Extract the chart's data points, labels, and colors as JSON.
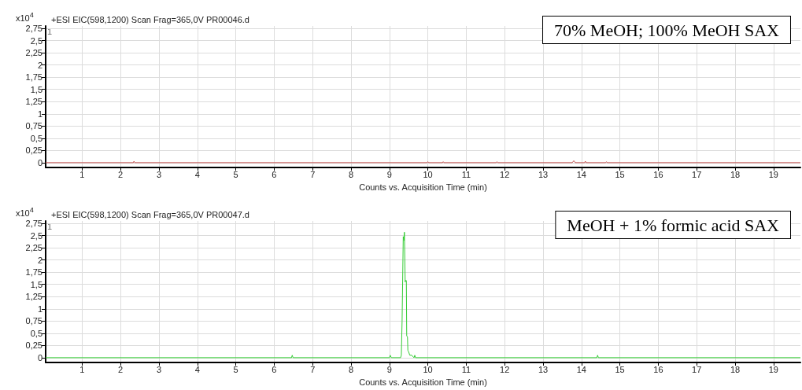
{
  "chart_data": [
    {
      "type": "line",
      "title": "+ESI EIC(598,1200) Scan Frag=365,0V PR00046.d",
      "xlabel": "Counts vs. Acquisition Time (min)",
      "ylabel": "x10$^{4}$",
      "annotations": [
        "1",
        "70% MeOH; 100% MeOH SAX"
      ],
      "series": [
        {
          "color": "#c0504d",
          "x": [
            0.05,
            2.33,
            2.35,
            2.37,
            9.98,
            10.0,
            10.02,
            10.38,
            10.4,
            10.42,
            11.78,
            11.8,
            11.82,
            13.76,
            13.8,
            13.84,
            14.08,
            14.1,
            14.12,
            14.63,
            14.65,
            14.67,
            19.7
          ],
          "values": [
            0,
            0,
            0.03,
            0,
            0,
            0.02,
            0,
            0,
            0.02,
            0,
            0,
            0.02,
            0,
            0,
            0.04,
            0,
            0,
            0.03,
            0,
            0,
            0.02,
            0,
            0
          ]
        }
      ],
      "xlim": [
        0.05,
        19.7
      ],
      "xticks": [
        1,
        2,
        3,
        4,
        5,
        6,
        7,
        8,
        9,
        10,
        11,
        12,
        13,
        14,
        15,
        16,
        17,
        18,
        19
      ],
      "ylim": [
        -0.1,
        2.8
      ],
      "yticks": [
        0,
        {
          "value": 0.25,
          "label": "0,25"
        },
        {
          "value": 0.5,
          "label": "0,5"
        },
        {
          "value": 0.75,
          "label": "0,75"
        },
        1,
        {
          "value": 1.25,
          "label": "1,25"
        },
        {
          "value": 1.5,
          "label": "1,5"
        },
        {
          "value": 1.75,
          "label": "1,75"
        },
        2,
        {
          "value": 2.25,
          "label": "2,25"
        },
        {
          "value": 2.5,
          "label": "2,5"
        },
        {
          "value": 2.75,
          "label": "2,75"
        }
      ],
      "grid": true
    },
    {
      "type": "line",
      "title": "+ESI EIC(598,1200) Scan Frag=365,0V PR00047.d",
      "xlabel": "Counts vs. Acquisition Time (min)",
      "ylabel": "x10$^{4}$",
      "annotations": [
        "1",
        "MeOH + 1% formic acid SAX"
      ],
      "series": [
        {
          "color": "#33cc33",
          "x": [
            0.05,
            6.45,
            6.47,
            6.49,
            9.0,
            9.02,
            9.05,
            9.29,
            9.31,
            9.33,
            9.34,
            9.36,
            9.38,
            9.39,
            9.41,
            9.42,
            9.44,
            9.45,
            9.47,
            9.48,
            9.5,
            9.53,
            9.58,
            9.64,
            9.66,
            9.68,
            14.4,
            14.42,
            14.44,
            19.7
          ],
          "values": [
            0,
            0,
            0.05,
            0,
            0,
            0.05,
            0,
            0,
            0.05,
            0.75,
            0.75,
            2.48,
            2.4,
            2.57,
            1.55,
            1.58,
            1.58,
            0.45,
            0.42,
            0.15,
            0.12,
            0.05,
            0.05,
            0,
            0.05,
            0,
            0,
            0.05,
            0,
            0
          ]
        }
      ],
      "xlim": [
        0.05,
        19.7
      ],
      "xticks": [
        1,
        2,
        3,
        4,
        5,
        6,
        7,
        8,
        9,
        10,
        11,
        12,
        13,
        14,
        15,
        16,
        17,
        18,
        19
      ],
      "ylim": [
        -0.1,
        2.8
      ],
      "yticks": [
        0,
        {
          "value": 0.25,
          "label": "0,25"
        },
        {
          "value": 0.5,
          "label": "0,5"
        },
        {
          "value": 0.75,
          "label": "0,75"
        },
        1,
        {
          "value": 1.25,
          "label": "1,25"
        },
        {
          "value": 1.5,
          "label": "1,5"
        },
        {
          "value": 1.75,
          "label": "1,75"
        },
        2,
        {
          "value": 2.25,
          "label": "2,25"
        },
        {
          "value": 2.5,
          "label": "2,5"
        },
        {
          "value": 2.75,
          "label": "2,75"
        }
      ],
      "grid": true
    }
  ]
}
